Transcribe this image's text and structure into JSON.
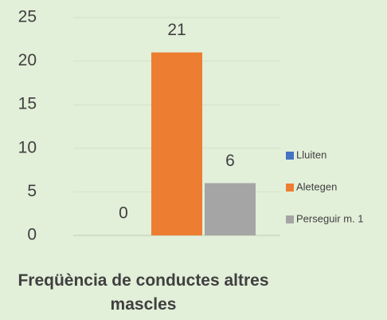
{
  "chart_data": {
    "type": "bar",
    "title": "Freqüència de conductes altres mascles",
    "categories": [
      null
    ],
    "series": [
      {
        "name": "Lluiten",
        "color": "#4472c4",
        "values": [
          0
        ]
      },
      {
        "name": "Aletegen",
        "color": "#ed7d31",
        "values": [
          21
        ]
      },
      {
        "name": "Perseguir m. 1",
        "color": "#a5a5a5",
        "values": [
          6
        ]
      }
    ],
    "ylim": [
      0,
      25
    ],
    "yticks": [
      0,
      5,
      10,
      15,
      20,
      25
    ],
    "grid": true,
    "legend": "right"
  }
}
